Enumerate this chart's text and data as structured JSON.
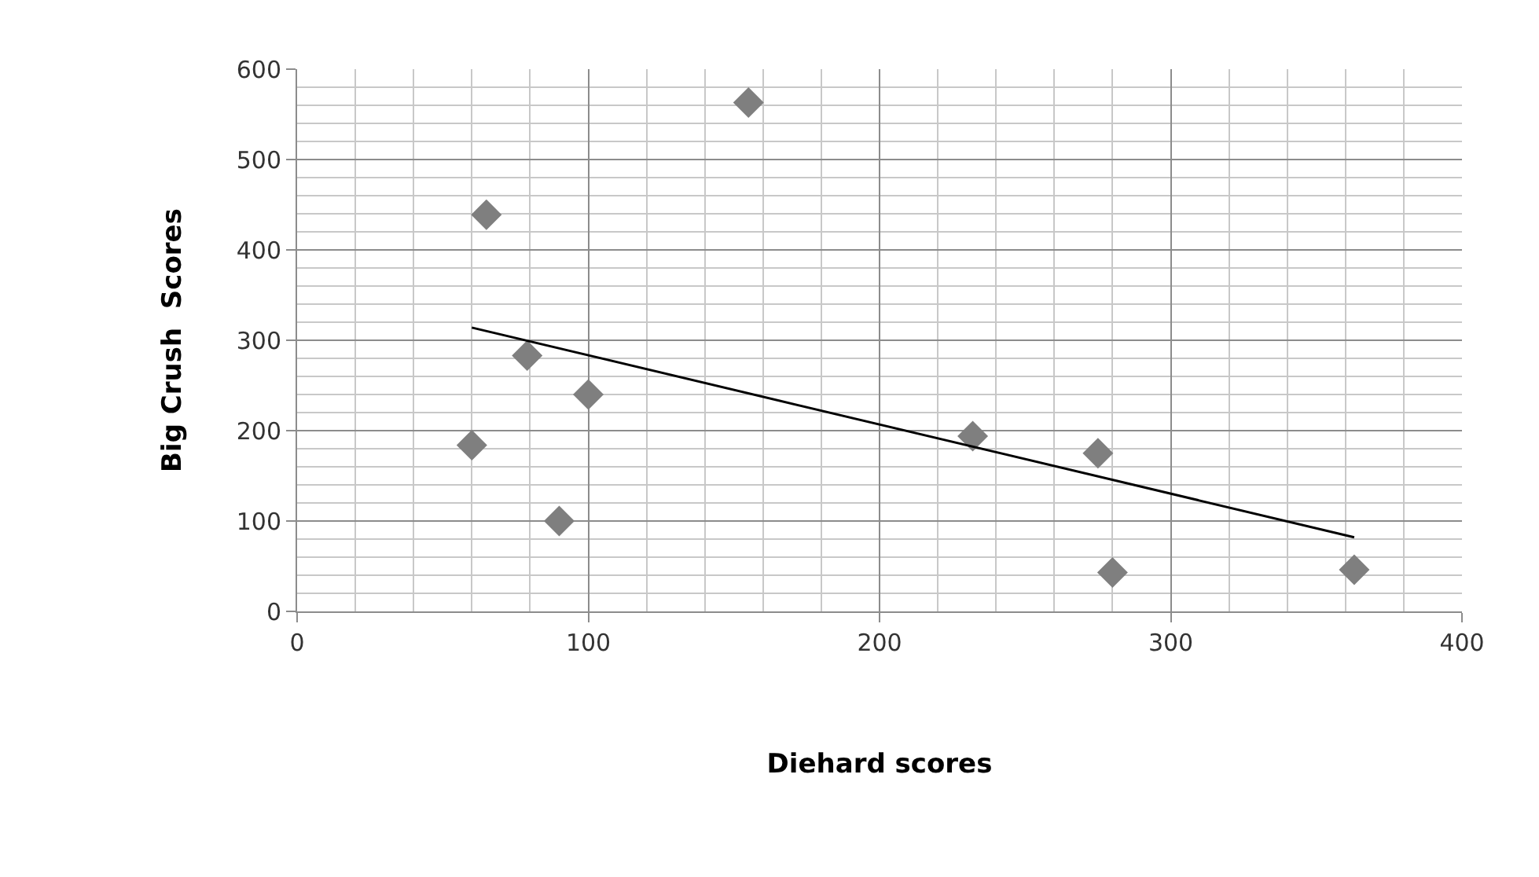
{
  "chart_data": {
    "type": "scatter",
    "xlabel": "Diehard scores",
    "ylabel": "Big Crush  Scores",
    "series": [
      {
        "color": "#7f7f7f",
        "marker": "diamond",
        "x": [
          60,
          65,
          79,
          90,
          100,
          155,
          232,
          275,
          280,
          363
        ],
        "values": [
          184,
          439,
          283,
          100,
          240,
          563,
          194,
          175,
          43,
          46
        ]
      },
      {
        "type": "line",
        "color": "#000000",
        "marker": "none",
        "x": [
          60,
          363
        ],
        "values": [
          314,
          82
        ]
      }
    ],
    "xlim": [
      0,
      400
    ],
    "ylim": [
      0,
      600
    ],
    "xticks": [
      0,
      {
        "value": 20,
        "label": null
      },
      {
        "value": 40,
        "label": null
      },
      {
        "value": 60,
        "label": null
      },
      {
        "value": 80,
        "label": null
      },
      100,
      {
        "value": 120,
        "label": null
      },
      {
        "value": 140,
        "label": null
      },
      {
        "value": 160,
        "label": null
      },
      {
        "value": 180,
        "label": null
      },
      200,
      {
        "value": 220,
        "label": null
      },
      {
        "value": 240,
        "label": null
      },
      {
        "value": 260,
        "label": null
      },
      {
        "value": 280,
        "label": null
      },
      300,
      {
        "value": 320,
        "label": null
      },
      {
        "value": 340,
        "label": null
      },
      {
        "value": 360,
        "label": null
      },
      {
        "value": 380,
        "label": null
      },
      400
    ],
    "yticks": [
      0,
      {
        "value": 20,
        "label": null
      },
      {
        "value": 40,
        "label": null
      },
      {
        "value": 60,
        "label": null
      },
      {
        "value": 80,
        "label": null
      },
      100,
      {
        "value": 120,
        "label": null
      },
      {
        "value": 140,
        "label": null
      },
      {
        "value": 160,
        "label": null
      },
      {
        "value": 180,
        "label": null
      },
      200,
      {
        "value": 220,
        "label": null
      },
      {
        "value": 240,
        "label": null
      },
      {
        "value": 260,
        "label": null
      },
      {
        "value": 280,
        "label": null
      },
      300,
      {
        "value": 320,
        "label": null
      },
      {
        "value": 340,
        "label": null
      },
      {
        "value": 360,
        "label": null
      },
      {
        "value": 380,
        "label": null
      },
      400,
      {
        "value": 420,
        "label": null
      },
      {
        "value": 440,
        "label": null
      },
      {
        "value": 460,
        "label": null
      },
      {
        "value": 480,
        "label": null
      },
      500,
      {
        "value": 520,
        "label": null
      },
      {
        "value": 540,
        "label": null
      },
      {
        "value": 560,
        "label": null
      },
      {
        "value": 580,
        "label": null
      },
      600
    ],
    "grid": true,
    "legend": false
  }
}
